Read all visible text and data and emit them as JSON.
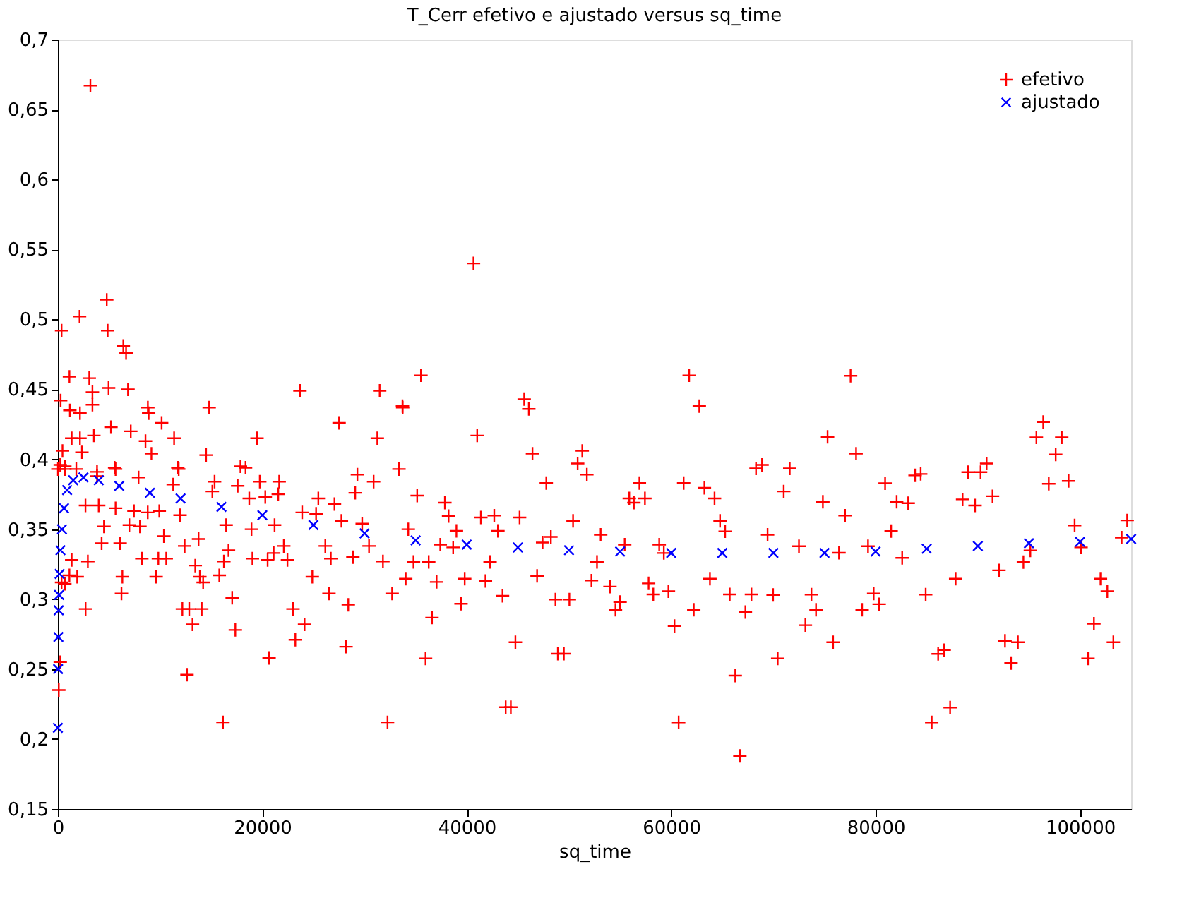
{
  "chart_data": {
    "type": "scatter",
    "title": "T_Cerr efetivo e ajustado versus sq_time",
    "xlabel": "sq_time",
    "xlim": [
      0,
      105000
    ],
    "xticks": [
      0,
      20000,
      40000,
      60000,
      80000,
      100000
    ],
    "ylim": [
      0.15,
      0.7
    ],
    "yticks": [
      {
        "value": 0.15,
        "label": "0,15"
      },
      {
        "value": 0.2,
        "label": "0,2"
      },
      {
        "value": 0.25,
        "label": "0,25"
      },
      {
        "value": 0.3,
        "label": "0,3"
      },
      {
        "value": 0.35,
        "label": "0,35"
      },
      {
        "value": 0.4,
        "label": "0,4"
      },
      {
        "value": 0.45,
        "label": "0,45"
      },
      {
        "value": 0.5,
        "label": "0,5"
      },
      {
        "value": 0.55,
        "label": "0,55"
      },
      {
        "value": 0.6,
        "label": "0,6"
      },
      {
        "value": 0.65,
        "label": "0,65"
      },
      {
        "value": 0.7,
        "label": "0,7"
      }
    ],
    "grid": false,
    "legend": "top right",
    "series": [
      {
        "name": "efetivo",
        "color": "#ff0000",
        "marker": "cross",
        "x": [
          4780,
          2120,
          360,
          4870,
          6400,
          6670,
          1130,
          3070,
          3380,
          4960,
          6860,
          270,
          1170,
          2160,
          3380,
          8800,
          8880,
          10150,
          5190,
          7130,
          14800,
          23680,
          27510,
          31480,
          33730,
          1350,
          2160,
          3520,
          8570,
          11370,
          19480,
          31250,
          450,
          2350,
          9150,
          14500,
          17860,
          18360,
          5640,
          11820,
          33370,
          0,
          680,
          1800,
          3830,
          3180,
          230,
          90,
          680,
          360,
          230,
          680,
          3830,
          5550,
          7890,
          11730,
          15330,
          17590,
          19750,
          21650,
          29300,
          30890,
          11280,
          2700,
          3990,
          5640,
          7440,
          8790,
          9920,
          11950,
          15110,
          18720,
          20290,
          21560,
          25480,
          27060,
          29090,
          23900,
          25260,
          27740,
          29770,
          34280,
          4510,
          6990,
          8030,
          10370,
          13760,
          12400,
          16460,
          18940,
          21200,
          6090,
          4280,
          16690,
          22100,
          26160,
          30440,
          1350,
          2930,
          8210,
          9830,
          10600,
          16240,
          19030,
          20520,
          21110,
          22460,
          26700,
          28860,
          31800,
          1130,
          1890,
          6310,
          9610,
          13440,
          13890,
          14210,
          15790,
          24890,
          6220,
          17050,
          26520,
          28410,
          32700,
          2710,
          12180,
          12850,
          14070,
          23000,
          13170,
          24130,
          17360,
          23230,
          28190,
          20660,
          12630,
          16150,
          32250,
          40660,
          35520,
          61760,
          33710,
          45620,
          46070,
          62750,
          41020,
          46430,
          51300,
          50850,
          51750,
          68890,
          68300,
          35150,
          37860,
          38220,
          41380,
          42690,
          45170,
          38990,
          43050,
          47780,
          50400,
          53100,
          56890,
          55900,
          56350,
          57430,
          61220,
          63250,
          64240,
          64780,
          65280,
          69430,
          48230,
          47420,
          37410,
          38670,
          55450,
          58830,
          34790,
          36280,
          42280,
          52740,
          59280,
          34030,
          37050,
          39800,
          41830,
          46880,
          52200,
          54010,
          57790,
          59730,
          63790,
          65730,
          67850,
          67260,
          39440,
          43500,
          48680,
          50040,
          55000,
          54550,
          58250,
          62210,
          60320,
          36600,
          44760,
          35970,
          48910,
          49500,
          66270,
          43810,
          44310,
          60730,
          66720,
          77550,
          75300,
          78090,
          71600,
          71010,
          74840,
          77010,
          80930,
          82060,
          83190,
          83860,
          84410,
          89050,
          90270,
          90860,
          88510,
          89730,
          91440,
          96400,
          95730,
          98210,
          97620,
          96940,
          98880,
          104610,
          99470,
          72500,
          81520,
          76420,
          79260,
          82600,
          95140,
          100100,
          104070,
          94460,
          92070,
          87830,
          102000,
          102670,
          69970,
          73720,
          74170,
          79810,
          80350,
          78680,
          84900,
          73130,
          75840,
          70420,
          86120,
          86710,
          92660,
          93920,
          93250,
          101360,
          103260,
          100780,
          87290,
          85490
        ],
        "values": [
          0.514,
          0.502,
          0.492,
          0.492,
          0.481,
          0.476,
          0.459,
          0.458,
          0.448,
          0.451,
          0.45,
          0.442,
          0.435,
          0.433,
          0.439,
          0.437,
          0.433,
          0.426,
          0.423,
          0.42,
          0.437,
          0.449,
          0.426,
          0.449,
          0.437,
          0.415,
          0.415,
          0.417,
          0.413,
          0.415,
          0.415,
          0.415,
          0.406,
          0.405,
          0.404,
          0.403,
          0.395,
          0.394,
          0.393,
          0.393,
          0.393,
          0.393,
          0.393,
          0.393,
          0.388,
          0.667,
          0.255,
          0.235,
          0.311,
          0.312,
          0.396,
          0.395,
          0.391,
          0.394,
          0.387,
          0.394,
          0.384,
          0.381,
          0.384,
          0.384,
          0.389,
          0.384,
          0.382,
          0.367,
          0.367,
          0.365,
          0.363,
          0.362,
          0.363,
          0.36,
          0.377,
          0.372,
          0.373,
          0.375,
          0.372,
          0.368,
          0.376,
          0.362,
          0.361,
          0.356,
          0.354,
          0.35,
          0.352,
          0.353,
          0.352,
          0.345,
          0.343,
          0.338,
          0.353,
          0.35,
          0.353,
          0.34,
          0.34,
          0.335,
          0.338,
          0.338,
          0.338,
          0.328,
          0.327,
          0.329,
          0.329,
          0.329,
          0.327,
          0.329,
          0.328,
          0.333,
          0.328,
          0.329,
          0.33,
          0.327,
          0.317,
          0.316,
          0.316,
          0.316,
          0.324,
          0.316,
          0.312,
          0.317,
          0.316,
          0.304,
          0.301,
          0.304,
          0.296,
          0.304,
          0.293,
          0.293,
          0.293,
          0.293,
          0.293,
          0.282,
          0.282,
          0.278,
          0.271,
          0.266,
          0.258,
          0.246,
          0.212,
          0.212,
          0.54,
          0.46,
          0.46,
          0.438,
          0.443,
          0.436,
          0.438,
          0.417,
          0.404,
          0.406,
          0.397,
          0.389,
          0.396,
          0.3935,
          0.374,
          0.369,
          0.3594,
          0.3584,
          0.3597,
          0.3584,
          0.3488,
          0.3488,
          0.383,
          0.356,
          0.346,
          0.383,
          0.372,
          0.369,
          0.372,
          0.383,
          0.3796,
          0.372,
          0.356,
          0.3485,
          0.346,
          0.3445,
          0.3405,
          0.339,
          0.337,
          0.339,
          0.339,
          0.3266,
          0.3266,
          0.3266,
          0.3266,
          0.333,
          0.3146,
          0.3123,
          0.3146,
          0.313,
          0.3166,
          0.3133,
          0.309,
          0.3113,
          0.3057,
          0.3146,
          0.3034,
          0.3034,
          0.2908,
          0.2967,
          0.3024,
          0.2997,
          0.2997,
          0.298,
          0.2924,
          0.3034,
          0.2924,
          0.2808,
          0.2868,
          0.2692,
          0.2576,
          0.261,
          0.261,
          0.2454,
          0.2228,
          0.2228,
          0.2119,
          0.188,
          0.4597,
          0.416,
          0.404,
          0.3935,
          0.377,
          0.3696,
          0.3597,
          0.3829,
          0.3696,
          0.3686,
          0.3885,
          0.3895,
          0.3908,
          0.3908,
          0.397,
          0.3713,
          0.367,
          0.3736,
          0.4266,
          0.4157,
          0.4157,
          0.4034,
          0.3825,
          0.3845,
          0.3563,
          0.3527,
          0.3378,
          0.3487,
          0.3332,
          0.3378,
          0.3295,
          0.3348,
          0.337,
          0.344,
          0.3265,
          0.3206,
          0.3146,
          0.3146,
          0.3057,
          0.303,
          0.3033,
          0.2924,
          0.304,
          0.2964,
          0.2924,
          0.3033,
          0.2814,
          0.2692,
          0.2576,
          0.2609,
          0.2636,
          0.2702,
          0.2692,
          0.2543,
          0.2824,
          0.2692,
          0.2576,
          0.2225,
          0.2119
        ]
      },
      {
        "name": "ajustado",
        "color": "#0000ff",
        "marker": "x",
        "x": [
          0,
          20,
          50,
          80,
          120,
          170,
          250,
          400,
          600,
          900,
          1500,
          2500,
          4000,
          6000,
          9000,
          12000,
          16000,
          20000,
          25000,
          30000,
          35000,
          40000,
          45000,
          50000,
          55000,
          60000,
          65000,
          70000,
          75000,
          80000,
          85000,
          90000,
          95000,
          100000,
          105000
        ],
        "values": [
          0.208,
          0.25,
          0.273,
          0.292,
          0.303,
          0.318,
          0.335,
          0.35,
          0.365,
          0.378,
          0.385,
          0.387,
          0.385,
          0.381,
          0.376,
          0.372,
          0.366,
          0.36,
          0.353,
          0.347,
          0.342,
          0.339,
          0.337,
          0.335,
          0.334,
          0.333,
          0.333,
          0.333,
          0.333,
          0.334,
          0.336,
          0.338,
          0.34,
          0.341,
          0.343
        ]
      }
    ]
  }
}
